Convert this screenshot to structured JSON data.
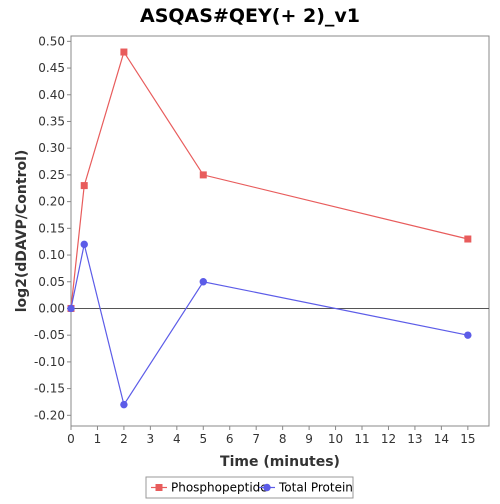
{
  "chart_data": {
    "type": "line",
    "title": "ASQAS#QEY(+ 2)_v1",
    "xlabel": "Time (minutes)",
    "ylabel": "log2(dDAVP/Control)",
    "xlim": [
      0,
      15.8
    ],
    "ylim": [
      -0.22,
      0.51
    ],
    "x_ticks": [
      0,
      1,
      2,
      3,
      4,
      5,
      6,
      7,
      8,
      9,
      10,
      11,
      12,
      13,
      14,
      15
    ],
    "x_tick_labels": [
      "0",
      "1",
      "2",
      "3",
      "4",
      "5",
      "6",
      "7",
      "8",
      "9",
      "10",
      "11",
      "12",
      "13",
      "14",
      "15"
    ],
    "y_ticks": [
      -0.2,
      -0.15,
      -0.1,
      -0.05,
      0.0,
      0.05,
      0.1,
      0.15,
      0.2,
      0.25,
      0.3,
      0.35,
      0.4,
      0.45,
      0.5
    ],
    "y_tick_labels": [
      "-0.20",
      "-0.15",
      "-0.10",
      "-0.05",
      "0.00",
      "0.05",
      "0.10",
      "0.15",
      "0.20",
      "0.25",
      "0.30",
      "0.35",
      "0.40",
      "0.45",
      "0.50"
    ],
    "zero_line": true,
    "grid": false,
    "legend_position": "bottom",
    "series": [
      {
        "name": "Phosphopeptide",
        "color": "#e85c5c",
        "marker": "square",
        "x": [
          0,
          0.5,
          2,
          5,
          15
        ],
        "y": [
          0.0,
          0.23,
          0.48,
          0.25,
          0.13
        ]
      },
      {
        "name": "Total Protein",
        "color": "#5c5ce8",
        "marker": "circle",
        "x": [
          0,
          0.5,
          2,
          5,
          15
        ],
        "y": [
          0.0,
          0.12,
          -0.18,
          0.05,
          -0.05
        ]
      }
    ]
  }
}
